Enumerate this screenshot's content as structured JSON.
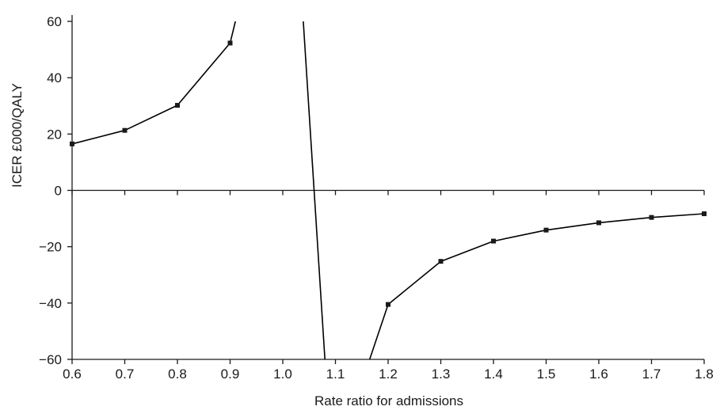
{
  "chart_data": {
    "type": "line",
    "xlabel": "Rate ratio for admissions",
    "ylabel": "ICER £000/QALY",
    "xlim": [
      0.6,
      1.8
    ],
    "ylim": [
      -60,
      60
    ],
    "x_ticks": [
      "0.6",
      "0.7",
      "0.8",
      "0.9",
      "1.0",
      "1.1",
      "1.2",
      "1.3",
      "1.4",
      "1.5",
      "1.6",
      "1.7",
      "1.8"
    ],
    "y_ticks": [
      "60",
      "40",
      "20",
      "0",
      "−20",
      "−40",
      "−60"
    ],
    "grid": false,
    "legend": "none",
    "series": [
      {
        "segments": [
          [
            {
              "x": 0.6,
              "y": 16.5,
              "marker": true
            },
            {
              "x": 0.7,
              "y": 21.3,
              "marker": true
            },
            {
              "x": 0.8,
              "y": 30.2,
              "marker": true
            },
            {
              "x": 0.9,
              "y": 52.3,
              "marker": true
            },
            {
              "x": 0.91,
              "y": 60,
              "marker": false
            }
          ],
          [
            {
              "x": 1.039,
              "y": 60,
              "marker": false
            },
            {
              "x": 1.08,
              "y": -60,
              "marker": false
            }
          ],
          [
            {
              "x": 1.165,
              "y": -60,
              "marker": false
            },
            {
              "x": 1.2,
              "y": -40.5,
              "marker": true
            },
            {
              "x": 1.3,
              "y": -25.2,
              "marker": true
            },
            {
              "x": 1.4,
              "y": -18,
              "marker": true
            },
            {
              "x": 1.5,
              "y": -14.1,
              "marker": true
            },
            {
              "x": 1.6,
              "y": -11.5,
              "marker": true
            },
            {
              "x": 1.7,
              "y": -9.6,
              "marker": true
            },
            {
              "x": 1.8,
              "y": -8.3,
              "marker": true
            }
          ]
        ]
      }
    ]
  }
}
